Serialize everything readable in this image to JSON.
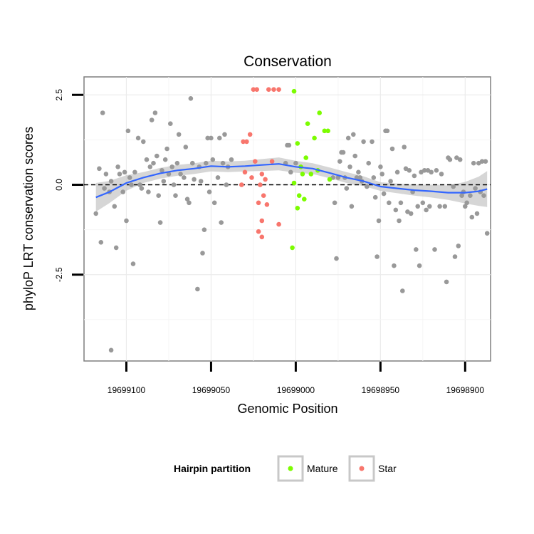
{
  "chart_data": {
    "type": "scatter",
    "title": "Conservation",
    "xlabel": "Genomic Position",
    "ylabel": "phyloP LRT conservation scores",
    "x_reversed": true,
    "xlim": [
      19699125,
      19698885
    ],
    "ylim": [
      -4.9,
      3.0
    ],
    "x_ticks": [
      19699100,
      19699050,
      19699000,
      19698950,
      19698900
    ],
    "x_tick_labels": [
      "19699100",
      "19699050",
      "19699000",
      "19698950",
      "19698900"
    ],
    "y_ticks": [
      2.5,
      0.0,
      -2.5
    ],
    "y_tick_labels": [
      "2.5",
      "0.0",
      "-2.5"
    ],
    "grid": true,
    "reference_line": {
      "y": 0,
      "style": "dashed"
    },
    "legend": {
      "title": "Hairpin partition",
      "position": "bottom",
      "entries": [
        {
          "label": "Mature",
          "color": "#7cfc00"
        },
        {
          "label": "Star",
          "color": "#f8766d"
        }
      ]
    },
    "colors": {
      "other": "#999999",
      "smooth": "#3366ff",
      "ribbon": "#c8c8c8"
    },
    "series": [
      {
        "name": "Mature",
        "color": "#7cfc00",
        "points": [
          [
            19699001,
            2.6
          ],
          [
            19698999,
            1.15
          ],
          [
            19698993,
            1.7
          ],
          [
            19698989,
            1.3
          ],
          [
            19698986,
            2.0
          ],
          [
            19698983,
            1.5
          ],
          [
            19698981,
            1.5
          ],
          [
            19698994,
            0.75
          ],
          [
            19698996,
            0.3
          ],
          [
            19698991,
            0.3
          ],
          [
            19698987,
            0.4
          ],
          [
            19698980,
            0.15
          ],
          [
            19699001,
            0.05
          ],
          [
            19698998,
            -0.3
          ],
          [
            19698995,
            -0.4
          ],
          [
            19698999,
            -0.65
          ],
          [
            19699002,
            -1.75
          ],
          [
            19698997,
            0.5
          ]
        ]
      },
      {
        "name": "Star",
        "color": "#f8766d",
        "points": [
          [
            19699025,
            2.65
          ],
          [
            19699023,
            2.65
          ],
          [
            19699016,
            2.65
          ],
          [
            19699013,
            2.65
          ],
          [
            19699010,
            2.65
          ],
          [
            19699027,
            1.4
          ],
          [
            19699029,
            1.2
          ],
          [
            19699031,
            1.2
          ],
          [
            19699024,
            0.65
          ],
          [
            19699014,
            0.65
          ],
          [
            19699030,
            0.35
          ],
          [
            19699020,
            0.3
          ],
          [
            19699026,
            0.2
          ],
          [
            19699018,
            0.15
          ],
          [
            19699021,
            0.0
          ],
          [
            19699032,
            0.0
          ],
          [
            19699019,
            -0.3
          ],
          [
            19699022,
            -0.5
          ],
          [
            19699017,
            -0.55
          ],
          [
            19699020,
            -1.0
          ],
          [
            19699010,
            -1.1
          ],
          [
            19699022,
            -1.3
          ],
          [
            19699020,
            -1.45
          ]
        ]
      },
      {
        "name": "Other",
        "color": "#999999",
        "points": [
          [
            19699118,
            -0.8
          ],
          [
            19699116,
            0.45
          ],
          [
            19699115,
            -1.6
          ],
          [
            19699114,
            2.0
          ],
          [
            19699113,
            -0.1
          ],
          [
            19699112,
            0.3
          ],
          [
            19699110,
            -0.2
          ],
          [
            19699109,
            0.1
          ],
          [
            19699107,
            -0.6
          ],
          [
            19699106,
            -1.75
          ],
          [
            19699105,
            0.5
          ],
          [
            19699104,
            0.3
          ],
          [
            19699102,
            -0.2
          ],
          [
            19699101,
            0.35
          ],
          [
            19699100,
            -1.0
          ],
          [
            19699099,
            1.5
          ],
          [
            19699098,
            0.2
          ],
          [
            19699097,
            0.0
          ],
          [
            19699096,
            -2.2
          ],
          [
            19699095,
            0.35
          ],
          [
            19699093,
            1.3
          ],
          [
            19699092,
            0.0
          ],
          [
            19699091,
            -0.1
          ],
          [
            19699090,
            1.2
          ],
          [
            19699088,
            0.7
          ],
          [
            19699087,
            -0.2
          ],
          [
            19699086,
            0.5
          ],
          [
            19699085,
            1.8
          ],
          [
            19699084,
            0.6
          ],
          [
            19699083,
            2.0
          ],
          [
            19699082,
            0.8
          ],
          [
            19699081,
            -0.3
          ],
          [
            19699080,
            -1.05
          ],
          [
            19699079,
            0.4
          ],
          [
            19699078,
            0.1
          ],
          [
            19699077,
            0.7
          ],
          [
            19699076,
            1.0
          ],
          [
            19699075,
            0.3
          ],
          [
            19699074,
            1.7
          ],
          [
            19699073,
            0.5
          ],
          [
            19699072,
            0.0
          ],
          [
            19699071,
            -0.3
          ],
          [
            19699070,
            0.6
          ],
          [
            19699069,
            1.4
          ],
          [
            19699068,
            0.3
          ],
          [
            19699066,
            0.2
          ],
          [
            19699065,
            1.05
          ],
          [
            19699064,
            -0.4
          ],
          [
            19699063,
            -0.5
          ],
          [
            19699062,
            2.4
          ],
          [
            19699061,
            0.6
          ],
          [
            19699060,
            0.15
          ],
          [
            19699058,
            -2.9
          ],
          [
            19699057,
            0.5
          ],
          [
            19699056,
            0.1
          ],
          [
            19699055,
            -1.9
          ],
          [
            19699054,
            -1.25
          ],
          [
            19699053,
            0.6
          ],
          [
            19699052,
            1.3
          ],
          [
            19699051,
            -0.2
          ],
          [
            19699050,
            1.3
          ],
          [
            19699049,
            0.7
          ],
          [
            19699048,
            -0.5
          ],
          [
            19699046,
            0.2
          ],
          [
            19699045,
            1.3
          ],
          [
            19699044,
            -1.05
          ],
          [
            19699043,
            0.6
          ],
          [
            19699042,
            1.4
          ],
          [
            19699041,
            0.0
          ],
          [
            19699040,
            0.5
          ],
          [
            19699038,
            0.7
          ],
          [
            19699006,
            0.6
          ],
          [
            19699005,
            1.1
          ],
          [
            19699004,
            1.1
          ],
          [
            19699003,
            0.35
          ],
          [
            19699000,
            0.6
          ],
          [
            19698978,
            0.2
          ],
          [
            19698977,
            -0.5
          ],
          [
            19698976,
            -2.05
          ],
          [
            19698975,
            0.2
          ],
          [
            19698974,
            0.65
          ],
          [
            19698973,
            0.9
          ],
          [
            19698972,
            0.9
          ],
          [
            19698971,
            0.2
          ],
          [
            19698970,
            -0.1
          ],
          [
            19698969,
            1.3
          ],
          [
            19698968,
            0.5
          ],
          [
            19698967,
            -0.6
          ],
          [
            19698966,
            1.4
          ],
          [
            19698965,
            0.8
          ],
          [
            19698964,
            0.2
          ],
          [
            19698963,
            0.35
          ],
          [
            19698962,
            0.2
          ],
          [
            19698961,
            0.1
          ],
          [
            19698960,
            1.2
          ],
          [
            19698958,
            -0.05
          ],
          [
            19698957,
            0.6
          ],
          [
            19698955,
            1.2
          ],
          [
            19698954,
            0.2
          ],
          [
            19698953,
            -0.35
          ],
          [
            19698952,
            -2.0
          ],
          [
            19698951,
            -1.0
          ],
          [
            19698950,
            0.5
          ],
          [
            19698949,
            0.3
          ],
          [
            19698948,
            -0.25
          ],
          [
            19698947,
            1.5
          ],
          [
            19698946,
            1.5
          ],
          [
            19698945,
            -0.5
          ],
          [
            19698944,
            0.1
          ],
          [
            19698943,
            1.0
          ],
          [
            19698942,
            -2.25
          ],
          [
            19698941,
            -0.7
          ],
          [
            19698940,
            0.35
          ],
          [
            19698939,
            -1.0
          ],
          [
            19698938,
            -0.5
          ],
          [
            19698937,
            -2.95
          ],
          [
            19698936,
            1.05
          ],
          [
            19698935,
            0.45
          ],
          [
            19698934,
            -0.75
          ],
          [
            19698933,
            0.4
          ],
          [
            19698932,
            -0.8
          ],
          [
            19698931,
            -0.2
          ],
          [
            19698930,
            0.25
          ],
          [
            19698929,
            -1.8
          ],
          [
            19698928,
            -0.6
          ],
          [
            19698927,
            -2.25
          ],
          [
            19698926,
            0.35
          ],
          [
            19698925,
            -0.5
          ],
          [
            19698924,
            0.4
          ],
          [
            19698923,
            -0.7
          ],
          [
            19698922,
            0.4
          ],
          [
            19698921,
            -0.6
          ],
          [
            19698920,
            0.35
          ],
          [
            19698918,
            -1.8
          ],
          [
            19698917,
            0.4
          ],
          [
            19698915,
            -0.6
          ],
          [
            19698914,
            0.3
          ],
          [
            19698912,
            -0.6
          ],
          [
            19698911,
            -2.7
          ],
          [
            19698910,
            0.75
          ],
          [
            19698909,
            0.7
          ],
          [
            19698907,
            -0.05
          ],
          [
            19698906,
            -2.0
          ],
          [
            19698905,
            0.75
          ],
          [
            19698904,
            -1.7
          ],
          [
            19698903,
            0.7
          ],
          [
            19698902,
            -0.3
          ],
          [
            19698901,
            -0.2
          ],
          [
            19698900,
            -0.6
          ],
          [
            19698899,
            -0.5
          ],
          [
            19698897,
            -0.3
          ],
          [
            19698896,
            -0.9
          ],
          [
            19698895,
            0.6
          ],
          [
            19698894,
            -0.1
          ],
          [
            19698893,
            -0.8
          ],
          [
            19698892,
            0.6
          ],
          [
            19698891,
            -0.2
          ],
          [
            19698890,
            0.65
          ],
          [
            19698889,
            -0.3
          ],
          [
            19698888,
            0.65
          ],
          [
            19698887,
            -1.35
          ],
          [
            19699109,
            -4.6
          ]
        ]
      }
    ],
    "smooth_line": [
      [
        19699118,
        -0.35
      ],
      [
        19699110,
        -0.2
      ],
      [
        19699100,
        0.05
      ],
      [
        19699090,
        0.2
      ],
      [
        19699080,
        0.32
      ],
      [
        19699070,
        0.4
      ],
      [
        19699060,
        0.45
      ],
      [
        19699050,
        0.52
      ],
      [
        19699040,
        0.5
      ],
      [
        19699030,
        0.52
      ],
      [
        19699020,
        0.55
      ],
      [
        19699010,
        0.58
      ],
      [
        19699000,
        0.5
      ],
      [
        19698990,
        0.45
      ],
      [
        19698980,
        0.33
      ],
      [
        19698970,
        0.2
      ],
      [
        19698960,
        0.1
      ],
      [
        19698950,
        -0.05
      ],
      [
        19698940,
        -0.1
      ],
      [
        19698930,
        -0.15
      ],
      [
        19698920,
        -0.18
      ],
      [
        19698910,
        -0.22
      ],
      [
        19698900,
        -0.22
      ],
      [
        19698892,
        -0.18
      ],
      [
        19698887,
        -0.12
      ]
    ],
    "ribbon_halfwidth": [
      [
        19699118,
        0.4
      ],
      [
        19699105,
        0.25
      ],
      [
        19699090,
        0.15
      ],
      [
        19699070,
        0.15
      ],
      [
        19699050,
        0.15
      ],
      [
        19699030,
        0.15
      ],
      [
        19699010,
        0.18
      ],
      [
        19698990,
        0.15
      ],
      [
        19698970,
        0.15
      ],
      [
        19698950,
        0.12
      ],
      [
        19698930,
        0.15
      ],
      [
        19698910,
        0.2
      ],
      [
        19698895,
        0.35
      ],
      [
        19698887,
        0.5
      ]
    ]
  }
}
